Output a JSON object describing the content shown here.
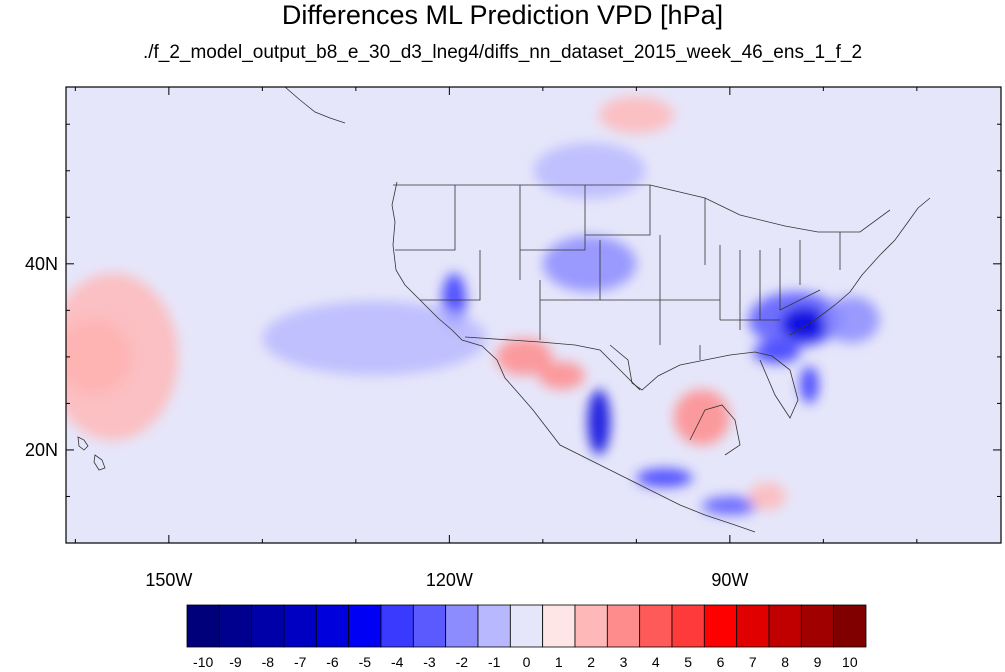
{
  "title": "Differences ML Prediction VPD [hPa]",
  "subtitle": "./f_2_model_output_b8_e_30_d3_lneg4/diffs_nn_dataset_2015_week_46_ens_1_f_2",
  "map": {
    "lon_range": [
      -161,
      -61
    ],
    "lat_range": [
      10,
      59
    ],
    "lon_ticks": [
      {
        "value": -150,
        "label": "150W"
      },
      {
        "value": -120,
        "label": "120W"
      },
      {
        "value": -90,
        "label": "90W"
      }
    ],
    "lat_ticks": [
      {
        "value": 40,
        "label": "40N"
      },
      {
        "value": 20,
        "label": "20N"
      }
    ],
    "background_color": "#e6e6fa"
  },
  "colorbar": {
    "labels": [
      "-10",
      "-9",
      "-8",
      "-7",
      "-6",
      "-5",
      "-4",
      "-3",
      "-2",
      "-1",
      "0",
      "1",
      "2",
      "3",
      "4",
      "5",
      "6",
      "7",
      "8",
      "9",
      "10"
    ],
    "colors": [
      "#00007a",
      "#00008f",
      "#0000a8",
      "#0000c2",
      "#0000dc",
      "#0000f5",
      "#3a3aff",
      "#5a5aff",
      "#8c8cff",
      "#b8b8ff",
      "#e6e6fa",
      "#ffe6e6",
      "#ffb8b8",
      "#ff8c8c",
      "#ff5a5a",
      "#ff3a3a",
      "#ff0000",
      "#e00000",
      "#c00000",
      "#a00000",
      "#800000"
    ]
  },
  "features": [
    {
      "name": "blue-anomaly-southeast-us",
      "color": "#5a5aff",
      "lon": -83,
      "lat": 34,
      "rlon": 5,
      "rlat": 3
    },
    {
      "name": "blue-anomaly-southeast-core",
      "color": "#0000dc",
      "lon": -82,
      "lat": 33.5,
      "rlon": 2.5,
      "rlat": 1.8
    },
    {
      "name": "blue-anomaly-gulf-coast",
      "color": "#3a3aff",
      "lon": -85,
      "lat": 30.5,
      "rlon": 2.5,
      "rlat": 1.2
    },
    {
      "name": "blue-anomaly-florida",
      "color": "#3a3aff",
      "lon": -81.5,
      "lat": 27,
      "rlon": 1,
      "rlat": 2
    },
    {
      "name": "blue-anomaly-atlantic",
      "color": "#8c8cff",
      "lon": -77,
      "lat": 34,
      "rlon": 3,
      "rlat": 2.5
    },
    {
      "name": "blue-anomaly-california",
      "color": "#3a3aff",
      "lon": -119.5,
      "lat": 36,
      "rlon": 1.3,
      "rlat": 3
    },
    {
      "name": "blue-anomaly-great-plains",
      "color": "#8c8cff",
      "lon": -105,
      "lat": 40,
      "rlon": 5,
      "rlat": 3
    },
    {
      "name": "blue-anomaly-central-mexico",
      "color": "#0000dc",
      "lon": -104,
      "lat": 23,
      "rlon": 1.2,
      "rlat": 3.5
    },
    {
      "name": "blue-anomaly-south-mexico",
      "color": "#3a3aff",
      "lon": -97,
      "lat": 17,
      "rlon": 3,
      "rlat": 1
    },
    {
      "name": "blue-anomaly-central-america",
      "color": "#5a5aff",
      "lon": -90,
      "lat": 14,
      "rlon": 3,
      "rlat": 1
    },
    {
      "name": "blue-anomaly-east-pacific",
      "color": "#b8b8ff",
      "lon": -128,
      "lat": 32,
      "rlon": 12,
      "rlat": 4
    },
    {
      "name": "blue-anomaly-canada",
      "color": "#b8b8ff",
      "lon": -105,
      "lat": 50,
      "rlon": 6,
      "rlat": 3
    },
    {
      "name": "red-anomaly-hawaii-region",
      "color": "#ff8c8c",
      "lon": -158,
      "lat": 30,
      "rlon": 4,
      "rlat": 4
    },
    {
      "name": "red-anomaly-west-pacific",
      "color": "#ffb8b8",
      "lon": -156,
      "lat": 30,
      "rlon": 7,
      "rlat": 9
    },
    {
      "name": "red-anomaly-gulf-mexico",
      "color": "#ff8c8c",
      "lon": -93,
      "lat": 23.5,
      "rlon": 3,
      "rlat": 3
    },
    {
      "name": "red-anomaly-baja",
      "color": "#ff8c8c",
      "lon": -112,
      "lat": 30,
      "rlon": 3,
      "rlat": 2
    },
    {
      "name": "red-anomaly-northwest-mexico",
      "color": "#ff8c8c",
      "lon": -108,
      "lat": 28,
      "rlon": 2.5,
      "rlat": 1.5
    },
    {
      "name": "red-anomaly-north-pacific",
      "color": "#ffb8b8",
      "lon": -100,
      "lat": 56,
      "rlon": 4,
      "rlat": 2
    },
    {
      "name": "red-anomaly-caribbean",
      "color": "#ffb8b8",
      "lon": -86,
      "lat": 15,
      "rlon": 2,
      "rlat": 1.5
    }
  ]
}
